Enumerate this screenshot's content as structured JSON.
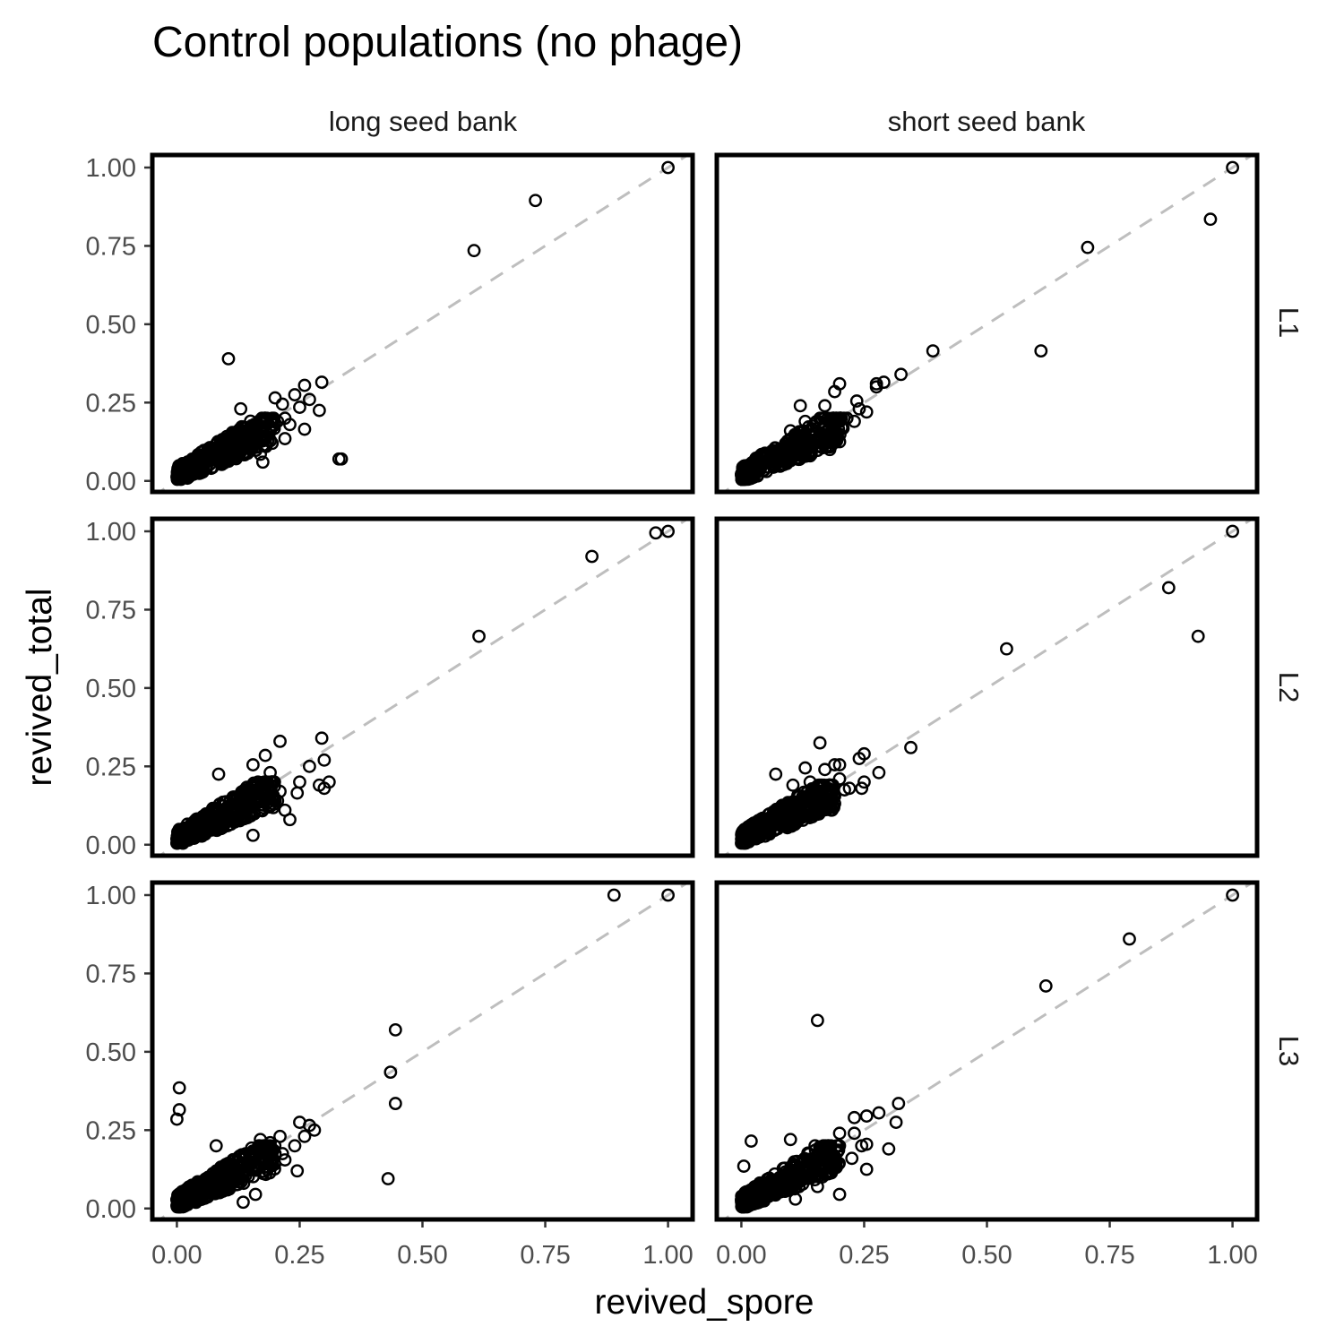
{
  "chart_data": {
    "type": "scatter",
    "title": "Control populations (no phage)",
    "xlabel": "revived_spore",
    "ylabel": "revived_total",
    "xlim": [
      -0.05,
      1.05
    ],
    "ylim": [
      -0.035,
      1.04
    ],
    "x_ticks": [
      "0.00",
      "0.25",
      "0.50",
      "0.75",
      "1.00"
    ],
    "y_ticks": [
      "0.00",
      "0.25",
      "0.50",
      "0.75",
      "1.00"
    ],
    "col_facets": [
      "long seed bank",
      "short seed bank"
    ],
    "row_facets": [
      "L1",
      "L2",
      "L3"
    ],
    "reference_line": {
      "style": "dashed",
      "color": "#bebebe",
      "slope": 1,
      "intercept": 0
    },
    "grid": false,
    "legend": "none",
    "panels": [
      {
        "col": "long seed bank",
        "row": "L1",
        "cluster": {
          "x_max": 0.2,
          "y_min": 0.0,
          "y_max": 0.2,
          "count": 340
        },
        "points": [
          [
            1.0,
            1.0
          ],
          [
            0.73,
            0.895
          ],
          [
            0.605,
            0.735
          ],
          [
            0.105,
            0.39
          ],
          [
            0.295,
            0.315
          ],
          [
            0.26,
            0.305
          ],
          [
            0.27,
            0.26
          ],
          [
            0.24,
            0.275
          ],
          [
            0.29,
            0.225
          ],
          [
            0.25,
            0.235
          ],
          [
            0.2,
            0.265
          ],
          [
            0.215,
            0.245
          ],
          [
            0.335,
            0.07
          ],
          [
            0.33,
            0.07
          ],
          [
            0.26,
            0.165
          ],
          [
            0.23,
            0.18
          ],
          [
            0.22,
            0.135
          ],
          [
            0.17,
            0.085
          ],
          [
            0.175,
            0.06
          ],
          [
            0.13,
            0.23
          ],
          [
            0.18,
            0.2
          ],
          [
            0.205,
            0.19
          ],
          [
            0.22,
            0.2
          ],
          [
            0.15,
            0.105
          ],
          [
            0.135,
            0.16
          ]
        ]
      },
      {
        "col": "short seed bank",
        "row": "L1",
        "cluster": {
          "x_max": 0.21,
          "y_min": 0.0,
          "y_max": 0.2,
          "count": 340
        },
        "points": [
          [
            1.0,
            1.0
          ],
          [
            0.955,
            0.835
          ],
          [
            0.705,
            0.745
          ],
          [
            0.61,
            0.415
          ],
          [
            0.39,
            0.415
          ],
          [
            0.325,
            0.34
          ],
          [
            0.29,
            0.315
          ],
          [
            0.275,
            0.3
          ],
          [
            0.275,
            0.31
          ],
          [
            0.2,
            0.31
          ],
          [
            0.19,
            0.285
          ],
          [
            0.255,
            0.22
          ],
          [
            0.235,
            0.255
          ],
          [
            0.24,
            0.23
          ],
          [
            0.23,
            0.19
          ],
          [
            0.17,
            0.24
          ],
          [
            0.12,
            0.24
          ],
          [
            0.18,
            0.1
          ],
          [
            0.2,
            0.125
          ],
          [
            0.14,
            0.08
          ],
          [
            0.13,
            0.19
          ],
          [
            0.215,
            0.2
          ],
          [
            0.1,
            0.16
          ],
          [
            0.16,
            0.2
          ]
        ]
      },
      {
        "col": "long seed bank",
        "row": "L2",
        "cluster": {
          "x_max": 0.2,
          "y_min": 0.0,
          "y_max": 0.2,
          "count": 380
        },
        "points": [
          [
            1.0,
            1.0
          ],
          [
            0.975,
            0.995
          ],
          [
            0.845,
            0.92
          ],
          [
            0.615,
            0.665
          ],
          [
            0.295,
            0.34
          ],
          [
            0.21,
            0.33
          ],
          [
            0.18,
            0.285
          ],
          [
            0.3,
            0.27
          ],
          [
            0.27,
            0.25
          ],
          [
            0.3,
            0.18
          ],
          [
            0.31,
            0.2
          ],
          [
            0.29,
            0.19
          ],
          [
            0.25,
            0.2
          ],
          [
            0.245,
            0.165
          ],
          [
            0.23,
            0.08
          ],
          [
            0.22,
            0.11
          ],
          [
            0.205,
            0.14
          ],
          [
            0.155,
            0.03
          ],
          [
            0.085,
            0.225
          ],
          [
            0.155,
            0.255
          ],
          [
            0.19,
            0.23
          ],
          [
            0.165,
            0.2
          ],
          [
            0.21,
            0.17
          ],
          [
            0.14,
            0.17
          ]
        ]
      },
      {
        "col": "short seed bank",
        "row": "L2",
        "cluster": {
          "x_max": 0.19,
          "y_min": 0.0,
          "y_max": 0.19,
          "count": 340
        },
        "points": [
          [
            1.0,
            1.0
          ],
          [
            0.87,
            0.82
          ],
          [
            0.93,
            0.665
          ],
          [
            0.54,
            0.625
          ],
          [
            0.345,
            0.31
          ],
          [
            0.16,
            0.325
          ],
          [
            0.25,
            0.29
          ],
          [
            0.24,
            0.275
          ],
          [
            0.19,
            0.255
          ],
          [
            0.2,
            0.255
          ],
          [
            0.28,
            0.23
          ],
          [
            0.25,
            0.2
          ],
          [
            0.245,
            0.18
          ],
          [
            0.22,
            0.18
          ],
          [
            0.2,
            0.21
          ],
          [
            0.13,
            0.245
          ],
          [
            0.07,
            0.225
          ],
          [
            0.17,
            0.24
          ],
          [
            0.19,
            0.155
          ],
          [
            0.15,
            0.14
          ],
          [
            0.21,
            0.175
          ],
          [
            0.14,
            0.2
          ],
          [
            0.105,
            0.19
          ]
        ]
      },
      {
        "col": "long seed bank",
        "row": "L3",
        "cluster": {
          "x_max": 0.2,
          "y_min": 0.0,
          "y_max": 0.2,
          "count": 360
        },
        "points": [
          [
            1.0,
            1.0
          ],
          [
            0.89,
            1.0
          ],
          [
            0.445,
            0.57
          ],
          [
            0.435,
            0.435
          ],
          [
            0.445,
            0.335
          ],
          [
            0.43,
            0.095
          ],
          [
            0.005,
            0.385
          ],
          [
            0.005,
            0.315
          ],
          [
            0.0,
            0.285
          ],
          [
            0.25,
            0.275
          ],
          [
            0.27,
            0.265
          ],
          [
            0.28,
            0.25
          ],
          [
            0.26,
            0.23
          ],
          [
            0.245,
            0.12
          ],
          [
            0.22,
            0.155
          ],
          [
            0.24,
            0.2
          ],
          [
            0.215,
            0.175
          ],
          [
            0.2,
            0.175
          ],
          [
            0.21,
            0.23
          ],
          [
            0.135,
            0.02
          ],
          [
            0.16,
            0.045
          ],
          [
            0.08,
            0.2
          ],
          [
            0.14,
            0.17
          ],
          [
            0.17,
            0.22
          ],
          [
            0.19,
            0.21
          ]
        ]
      },
      {
        "col": "short seed bank",
        "row": "L3",
        "cluster": {
          "x_max": 0.2,
          "y_min": 0.0,
          "y_max": 0.2,
          "count": 340
        },
        "points": [
          [
            1.0,
            1.0
          ],
          [
            0.79,
            0.86
          ],
          [
            0.62,
            0.71
          ],
          [
            0.155,
            0.6
          ],
          [
            0.32,
            0.335
          ],
          [
            0.255,
            0.295
          ],
          [
            0.23,
            0.29
          ],
          [
            0.28,
            0.305
          ],
          [
            0.315,
            0.275
          ],
          [
            0.3,
            0.19
          ],
          [
            0.255,
            0.205
          ],
          [
            0.255,
            0.125
          ],
          [
            0.245,
            0.2
          ],
          [
            0.23,
            0.24
          ],
          [
            0.2,
            0.24
          ],
          [
            0.02,
            0.215
          ],
          [
            0.005,
            0.135
          ],
          [
            0.2,
            0.045
          ],
          [
            0.155,
            0.07
          ],
          [
            0.11,
            0.03
          ],
          [
            0.15,
            0.2
          ],
          [
            0.17,
            0.18
          ],
          [
            0.1,
            0.22
          ],
          [
            0.225,
            0.16
          ]
        ]
      }
    ]
  }
}
